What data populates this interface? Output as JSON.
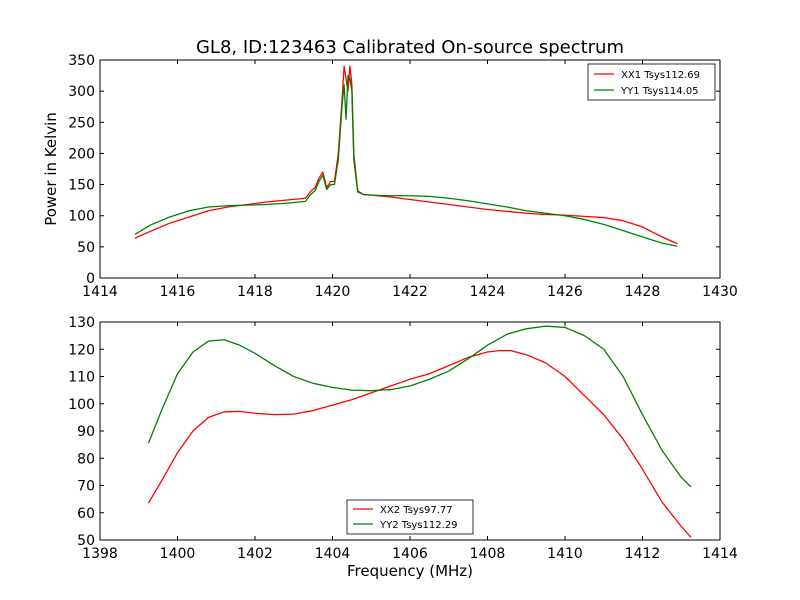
{
  "figure": {
    "title": "GL8, ID:123463 Calibrated On-source spectrum",
    "xlabel": "Frequency (MHz)"
  },
  "chart_data": [
    {
      "type": "line",
      "title": "GL8, ID:123463 Calibrated On-source spectrum",
      "xlabel": "",
      "ylabel": "Power in Kelvin",
      "xlim": [
        1414,
        1430
      ],
      "ylim": [
        0,
        350
      ],
      "xticks": [
        "1414",
        "1416",
        "1418",
        "1420",
        "1422",
        "1424",
        "1426",
        "1428",
        "1430"
      ],
      "yticks": [
        "0",
        "50",
        "100",
        "150",
        "200",
        "250",
        "300",
        "350"
      ],
      "grid": false,
      "legend_position": "top-right",
      "series": [
        {
          "name": "XX1 Tsys112.69",
          "color": "#ff0000",
          "x": [
            1414.9,
            1415.3,
            1415.8,
            1416.3,
            1416.8,
            1417.3,
            1417.8,
            1418.3,
            1418.8,
            1419.3,
            1419.45,
            1419.55,
            1419.65,
            1419.75,
            1419.85,
            1419.95,
            1420.05,
            1420.15,
            1420.25,
            1420.3,
            1420.35,
            1420.4,
            1420.45,
            1420.5,
            1420.55,
            1420.65,
            1420.8,
            1421.0,
            1421.5,
            1422.0,
            1422.5,
            1423.0,
            1423.5,
            1424.0,
            1424.5,
            1425.0,
            1425.5,
            1426.0,
            1426.5,
            1427.0,
            1427.5,
            1428.0,
            1428.5,
            1428.9
          ],
          "y": [
            64,
            75,
            88,
            98,
            108,
            114,
            118,
            122,
            125,
            128,
            140,
            145,
            160,
            170,
            145,
            155,
            155,
            200,
            290,
            340,
            320,
            300,
            340,
            310,
            200,
            140,
            134,
            133,
            130,
            126,
            122,
            118,
            114,
            110,
            107,
            104,
            102,
            101,
            99,
            97,
            92,
            82,
            66,
            55
          ]
        },
        {
          "name": "YY1 Tsys114.05",
          "color": "#008000",
          "x": [
            1414.9,
            1415.3,
            1415.8,
            1416.3,
            1416.8,
            1417.3,
            1417.8,
            1418.3,
            1418.8,
            1419.3,
            1419.45,
            1419.55,
            1419.65,
            1419.75,
            1419.85,
            1419.95,
            1420.05,
            1420.15,
            1420.25,
            1420.3,
            1420.35,
            1420.4,
            1420.45,
            1420.5,
            1420.55,
            1420.65,
            1420.8,
            1421.0,
            1421.5,
            1422.0,
            1422.5,
            1423.0,
            1423.5,
            1424.0,
            1424.5,
            1425.0,
            1425.5,
            1426.0,
            1426.5,
            1427.0,
            1427.5,
            1428.0,
            1428.5,
            1428.9
          ],
          "y": [
            70,
            85,
            98,
            108,
            114,
            116,
            117,
            118,
            120,
            123,
            135,
            140,
            155,
            165,
            142,
            150,
            150,
            190,
            280,
            310,
            255,
            325,
            320,
            300,
            190,
            138,
            134,
            133,
            132,
            132,
            131,
            128,
            124,
            119,
            114,
            108,
            104,
            100,
            94,
            86,
            76,
            66,
            56,
            51
          ]
        }
      ]
    },
    {
      "type": "line",
      "title": "",
      "xlabel": "Frequency (MHz)",
      "ylabel": "",
      "xlim": [
        1398,
        1414
      ],
      "ylim": [
        50,
        130
      ],
      "xticks": [
        "1398",
        "1400",
        "1402",
        "1404",
        "1406",
        "1408",
        "1410",
        "1412",
        "1414"
      ],
      "yticks": [
        "50",
        "60",
        "70",
        "80",
        "90",
        "100",
        "110",
        "120",
        "130"
      ],
      "grid": false,
      "legend_position": "bottom-center",
      "series": [
        {
          "name": "XX2 Tsys97.77",
          "color": "#ff0000",
          "x": [
            1399.25,
            1399.6,
            1400.0,
            1400.4,
            1400.8,
            1401.2,
            1401.6,
            1402.0,
            1402.5,
            1403.0,
            1403.5,
            1404.0,
            1404.5,
            1405.0,
            1405.5,
            1406.0,
            1406.5,
            1407.0,
            1407.5,
            1408.0,
            1408.3,
            1408.6,
            1409.0,
            1409.5,
            1410.0,
            1410.5,
            1411.0,
            1411.5,
            1412.0,
            1412.5,
            1413.0,
            1413.25
          ],
          "y": [
            63.5,
            72,
            82,
            90,
            95,
            97,
            97.2,
            96.5,
            96,
            96.2,
            97.5,
            99.5,
            101.5,
            104,
            106.5,
            109,
            111,
            114,
            117,
            119,
            119.5,
            119.5,
            118,
            115,
            110,
            103,
            96,
            87,
            76,
            64,
            55,
            51
          ]
        },
        {
          "name": "YY2 Tsys112.29",
          "color": "#008000",
          "x": [
            1399.25,
            1399.6,
            1400.0,
            1400.4,
            1400.8,
            1401.2,
            1401.6,
            1402.0,
            1402.5,
            1403.0,
            1403.5,
            1404.0,
            1404.5,
            1405.0,
            1405.5,
            1406.0,
            1406.5,
            1407.0,
            1407.5,
            1408.0,
            1408.5,
            1409.0,
            1409.5,
            1410.0,
            1410.5,
            1411.0,
            1411.5,
            1412.0,
            1412.5,
            1413.0,
            1413.25
          ],
          "y": [
            85.5,
            98,
            111,
            119,
            123,
            123.5,
            121.5,
            118.5,
            114,
            110,
            107.5,
            106,
            105,
            104.8,
            105.2,
            106.5,
            109,
            112,
            116.5,
            121.5,
            125.5,
            127.5,
            128.5,
            128,
            125,
            120,
            110,
            96,
            83,
            73,
            69.5
          ]
        }
      ]
    }
  ]
}
